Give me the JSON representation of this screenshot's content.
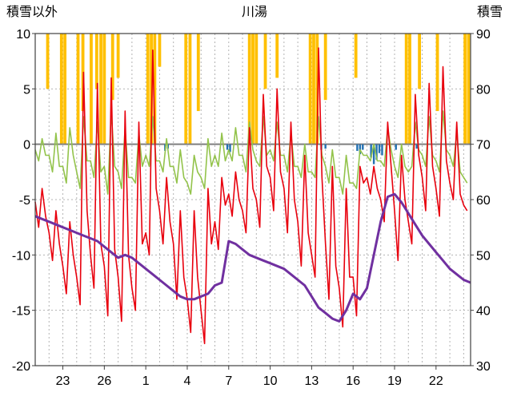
{
  "header": {
    "left_axis_title": "積雪以外",
    "title": "川湯",
    "right_axis_title": "積雪"
  },
  "chart_data": {
    "type": "line",
    "title": "川湯",
    "background": "#ffffff",
    "grid_color": "#b3b3b3",
    "zero_line_color": "#7f7f7f",
    "frame_color": "#404040",
    "left_axis": {
      "label": "積雪以外",
      "ticks": [
        10,
        5,
        0,
        -5,
        -10,
        -15,
        -20
      ],
      "range": [
        -20,
        10
      ]
    },
    "right_axis": {
      "label": "積雪",
      "ticks": [
        90,
        80,
        70,
        60,
        50,
        40,
        30
      ],
      "range": [
        30,
        90
      ]
    },
    "x_axis": {
      "tick_labels": [
        "23",
        "26",
        "1",
        "4",
        "7",
        "10",
        "13",
        "16",
        "19",
        "22"
      ],
      "tick_days": [
        2,
        5,
        8,
        11,
        14,
        17,
        20,
        23,
        26,
        29
      ],
      "range": [
        0,
        31.5
      ],
      "day_gridlines": true
    },
    "series": [
      {
        "name": "temperature",
        "color": "#e8000d",
        "axis": "left",
        "start": 0,
        "step": 0.25,
        "values": [
          -5.2,
          -7.5,
          -4,
          -6.5,
          -8,
          -10.5,
          -6,
          -9,
          -11,
          -13.5,
          -7,
          -10,
          -12,
          -14.5,
          6.5,
          -6,
          -10,
          -13,
          5.5,
          -9,
          -11,
          -15.5,
          6,
          -9.5,
          -12,
          -16,
          3,
          -10,
          -13,
          -15,
          2,
          -9,
          -8,
          -10,
          8.5,
          -4,
          -6,
          -9,
          -3,
          -7,
          -9,
          -14,
          -6,
          -12,
          -14,
          -17,
          -6,
          -12,
          -15,
          -18,
          -4,
          -9,
          -7,
          -9.5,
          -3,
          -5.5,
          -4.5,
          -6.5,
          -2.5,
          -5,
          -6,
          -8,
          1.5,
          -4,
          -5,
          -7.5,
          4.5,
          -2,
          -3,
          -6,
          5,
          -2.5,
          -4,
          -8,
          2,
          -5,
          -7,
          -11,
          -1,
          -8,
          -10,
          -12,
          8.7,
          -3,
          -9,
          -14,
          -2,
          -11,
          -13,
          -16.5,
          -4,
          -12,
          -12,
          -15.5,
          -2,
          -3.5,
          -3,
          -4.5,
          -2,
          -4,
          -5,
          -7,
          2,
          -2,
          -6,
          -10.5,
          -1,
          -5,
          -7,
          -9,
          4.5,
          -1,
          -3,
          -6,
          5.5,
          -2,
          -4,
          -6.5,
          7,
          -1.5,
          -3.5,
          -5,
          2,
          -4.5,
          -5.5,
          -6
        ]
      },
      {
        "name": "green-anomaly",
        "color": "#93c34b",
        "axis": "left",
        "start": 0,
        "step": 0.25,
        "values": [
          -0.5,
          -1.5,
          0.5,
          -1,
          -1,
          -2.5,
          1,
          -2,
          -2,
          -3.5,
          1.5,
          -1,
          -2.5,
          -4,
          2.5,
          -1.5,
          -1.5,
          -3,
          2,
          -2.5,
          -2,
          -4.5,
          3,
          -2,
          -2.5,
          -4,
          1.5,
          -3,
          -3,
          -3.5,
          1,
          -2,
          -1,
          -2,
          2.5,
          -1.5,
          -1.5,
          -2.5,
          0.5,
          -2,
          -2,
          -3.5,
          -0.5,
          -3,
          -3.5,
          -4.5,
          -1,
          -2.5,
          -3,
          -4,
          0.5,
          -2,
          -1,
          -2,
          1,
          -1.5,
          -0.5,
          -1.5,
          1.5,
          -1,
          -1,
          -2.5,
          2,
          -0.5,
          -1.5,
          -2,
          2.5,
          -1,
          -0.5,
          -1.5,
          2,
          -1,
          -1,
          -2.5,
          1,
          -2,
          -2,
          -3,
          0,
          -2.5,
          -2.5,
          -3,
          2.5,
          -1,
          -2,
          -3.5,
          -0.5,
          -3,
          -3,
          -4.5,
          -1,
          -3.5,
          -3.5,
          -4,
          -0.5,
          -1,
          -1,
          -1.5,
          0,
          -1.5,
          -1.5,
          -2,
          1.5,
          -0.5,
          -2,
          -3,
          0,
          -2,
          -2.5,
          -2,
          2,
          -0.5,
          -1,
          -2,
          2.5,
          -1,
          -1.5,
          -2.5,
          3,
          -0.5,
          -1,
          -2,
          1,
          -2.5,
          -3,
          -3.5
        ]
      },
      {
        "name": "snow-depth",
        "color": "#7030a0",
        "axis": "right",
        "start": 0,
        "step": 0.5,
        "values": [
          57,
          56.5,
          56,
          55.5,
          55,
          54.5,
          54,
          53.5,
          53,
          52.5,
          51.5,
          50.5,
          49.5,
          50,
          49.5,
          48.5,
          47.5,
          46.5,
          45.5,
          44.5,
          43.5,
          42.5,
          42,
          42,
          42.5,
          43,
          44.5,
          45,
          52.5,
          52,
          51,
          50,
          49.5,
          49,
          48.5,
          48,
          47.5,
          46.5,
          45.5,
          44.5,
          42.5,
          40.5,
          39.5,
          38.5,
          38,
          40,
          43,
          42,
          44,
          50,
          56,
          60.5,
          61,
          59.5,
          57.5,
          55.5,
          53.5,
          52,
          50.5,
          49,
          47.5,
          46.5,
          45.5,
          45
        ]
      }
    ],
    "bars_from_top": {
      "name": "sunshine",
      "color": "#ffc000",
      "top": 10,
      "width": 0.22,
      "items": [
        {
          "x": 0.9,
          "y0": 5
        },
        {
          "x": 1.9,
          "y0": 0
        },
        {
          "x": 2.15,
          "y0": 0
        },
        {
          "x": 3.1,
          "y0": 0
        },
        {
          "x": 3.45,
          "y0": 3
        },
        {
          "x": 4.05,
          "y0": 0
        },
        {
          "x": 4.45,
          "y0": 5
        },
        {
          "x": 4.75,
          "y0": 0
        },
        {
          "x": 5.0,
          "y0": 0
        },
        {
          "x": 5.6,
          "y0": 4
        },
        {
          "x": 6.0,
          "y0": 6
        },
        {
          "x": 8.15,
          "y0": 0
        },
        {
          "x": 8.4,
          "y0": 0
        },
        {
          "x": 8.65,
          "y0": 0
        },
        {
          "x": 9.0,
          "y0": 7
        },
        {
          "x": 10.9,
          "y0": 0
        },
        {
          "x": 11.2,
          "y0": 0
        },
        {
          "x": 11.8,
          "y0": 3
        },
        {
          "x": 15.5,
          "y0": 0
        },
        {
          "x": 15.75,
          "y0": 0
        },
        {
          "x": 16.0,
          "y0": 0
        },
        {
          "x": 16.65,
          "y0": 5
        },
        {
          "x": 17.5,
          "y0": 6
        },
        {
          "x": 19.9,
          "y0": 0
        },
        {
          "x": 20.15,
          "y0": 0
        },
        {
          "x": 20.4,
          "y0": 0
        },
        {
          "x": 21.0,
          "y0": 4
        },
        {
          "x": 23.2,
          "y0": 6
        },
        {
          "x": 26.85,
          "y0": 0
        },
        {
          "x": 27.1,
          "y0": 0
        },
        {
          "x": 27.8,
          "y0": 5
        },
        {
          "x": 29.1,
          "y0": 3
        },
        {
          "x": 31.1,
          "y0": 0
        },
        {
          "x": 31.35,
          "y0": 0
        }
      ]
    },
    "bars_below_zero": {
      "name": "precipitation",
      "color": "#2271b3",
      "width": 0.14,
      "items": [
        {
          "x": 9.4,
          "y": -0.6
        },
        {
          "x": 9.6,
          "y": -0.4
        },
        {
          "x": 13.9,
          "y": -0.5
        },
        {
          "x": 14.1,
          "y": -0.7
        },
        {
          "x": 20.7,
          "y": -0.5
        },
        {
          "x": 21.0,
          "y": -0.4
        },
        {
          "x": 23.3,
          "y": -0.6
        },
        {
          "x": 23.5,
          "y": -0.9
        },
        {
          "x": 23.7,
          "y": -0.5
        },
        {
          "x": 24.3,
          "y": -1.2
        },
        {
          "x": 24.5,
          "y": -1.8
        },
        {
          "x": 24.7,
          "y": -1.4
        },
        {
          "x": 24.9,
          "y": -0.8
        },
        {
          "x": 25.1,
          "y": -1.0
        },
        {
          "x": 26.1,
          "y": -0.5
        },
        {
          "x": 27.6,
          "y": -0.4
        }
      ]
    }
  }
}
